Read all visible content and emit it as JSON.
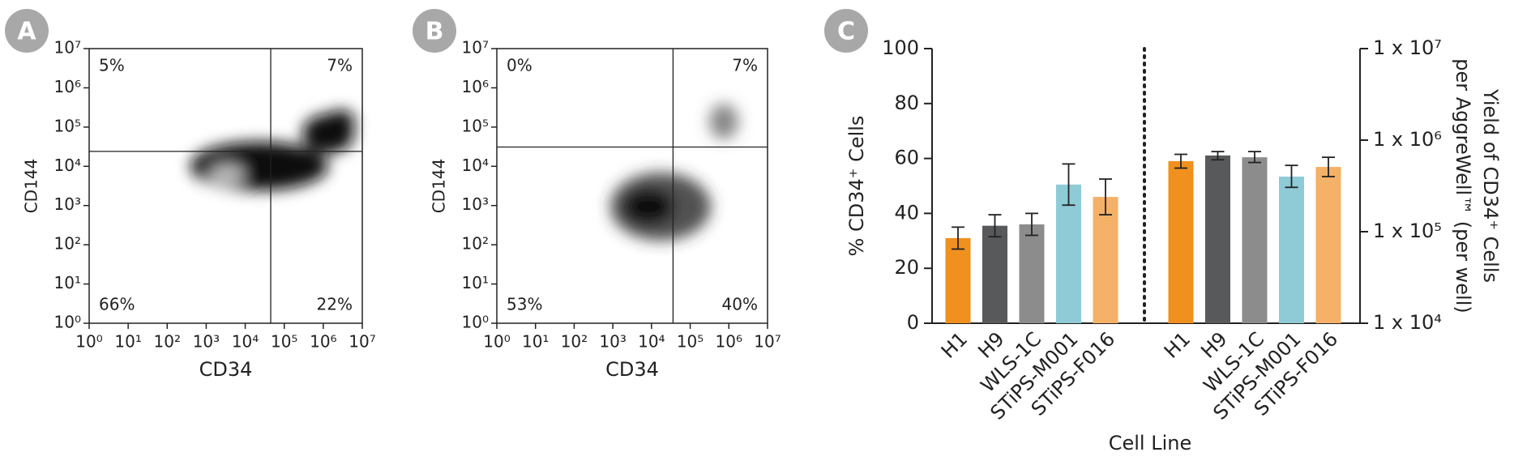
{
  "chart_data": [
    {
      "panel": "A",
      "type": "scatter",
      "xlabel": "CD34",
      "ylabel": "CD144",
      "xscale": "log",
      "yscale": "log",
      "xlim": [
        1,
        10000000
      ],
      "ylim": [
        1,
        10000000
      ],
      "xticks": [
        {
          "value": 1,
          "label": "10⁰"
        },
        {
          "value": 10,
          "label": "10¹"
        },
        {
          "value": 100,
          "label": "10²"
        },
        {
          "value": 1000,
          "label": "10³"
        },
        {
          "value": 10000,
          "label": "10⁴"
        },
        {
          "value": 100000,
          "label": "10⁵"
        },
        {
          "value": 1000000,
          "label": "10⁶"
        },
        {
          "value": 10000000,
          "label": "10⁷"
        }
      ],
      "yticks": [
        {
          "value": 1,
          "label": "10⁰"
        },
        {
          "value": 10,
          "label": "10¹"
        },
        {
          "value": 100,
          "label": "10²"
        },
        {
          "value": 1000,
          "label": "10³"
        },
        {
          "value": 10000,
          "label": "10⁴"
        },
        {
          "value": 100000,
          "label": "10⁵"
        },
        {
          "value": 1000000,
          "label": "10⁶"
        },
        {
          "value": 10000000,
          "label": "10⁷"
        }
      ],
      "gates": {
        "x": 45000,
        "y": 24000
      },
      "quadrants": {
        "values": [
          5,
          7,
          66,
          22
        ],
        "value_labels": [
          "5%",
          "7%",
          "66%",
          "22%"
        ]
      }
    },
    {
      "panel": "B",
      "type": "scatter",
      "xlabel": "CD34",
      "ylabel": "CD144",
      "xscale": "log",
      "yscale": "log",
      "xlim": [
        1,
        10000000
      ],
      "ylim": [
        1,
        10000000
      ],
      "xticks": [
        {
          "value": 1,
          "label": "10⁰"
        },
        {
          "value": 10,
          "label": "10¹"
        },
        {
          "value": 100,
          "label": "10²"
        },
        {
          "value": 1000,
          "label": "10³"
        },
        {
          "value": 10000,
          "label": "10⁴"
        },
        {
          "value": 100000,
          "label": "10⁵"
        },
        {
          "value": 1000000,
          "label": "10⁶"
        },
        {
          "value": 10000000,
          "label": "10⁷"
        }
      ],
      "yticks": [
        {
          "value": 1,
          "label": "10⁰"
        },
        {
          "value": 10,
          "label": "10¹"
        },
        {
          "value": 100,
          "label": "10²"
        },
        {
          "value": 1000,
          "label": "10³"
        },
        {
          "value": 10000,
          "label": "10⁴"
        },
        {
          "value": 100000,
          "label": "10⁵"
        },
        {
          "value": 1000000,
          "label": "10⁶"
        },
        {
          "value": 10000000,
          "label": "10⁷"
        }
      ],
      "gates": {
        "x": 36000,
        "y": 31000
      },
      "quadrants": {
        "values": [
          0,
          7,
          53,
          40
        ],
        "value_labels": [
          "0%",
          "7%",
          "53%",
          "40%"
        ]
      }
    },
    {
      "panel": "C",
      "type": "bar",
      "xlabel": "Cell Line",
      "ylabel": "% CD34⁺ Cells",
      "y2label": [
        "Yield of CD34⁺ Cells",
        "per AggreWell™ (per well)"
      ],
      "categories": [
        "H1",
        "H9",
        "WLS-1C",
        "STiPS-M001",
        "STiPS-F016"
      ],
      "colors": [
        "#f0901e",
        "#58595b",
        "#8c8c8c",
        "#8ecbd6",
        "#f5b167"
      ],
      "ylim": [
        0,
        100
      ],
      "yticks": [
        0,
        20,
        40,
        60,
        80,
        100
      ],
      "y2scale": "log",
      "y2lim": [
        10000,
        10000000
      ],
      "y2ticks": [
        {
          "value": 10000,
          "label": "1 x 10⁴"
        },
        {
          "value": 100000,
          "label": "1 x 10⁵"
        },
        {
          "value": 1000000,
          "label": "1 x 10⁶"
        },
        {
          "value": 10000000,
          "label": "1 x 10⁷"
        }
      ],
      "series": [
        {
          "values": [
            31,
            35.5,
            36,
            50.5,
            46
          ],
          "lower": [
            27,
            31.5,
            32,
            43,
            39.5
          ],
          "upper": [
            35,
            39.5,
            40,
            58,
            52.5
          ]
        },
        {
          "axis": "y2",
          "values": [
            590000,
            680000,
            650000,
            400000,
            510000
          ],
          "lower": [
            495000,
            610000,
            570000,
            305000,
            400000
          ],
          "upper": [
            700000,
            750000,
            750000,
            530000,
            650000
          ]
        }
      ]
    }
  ]
}
